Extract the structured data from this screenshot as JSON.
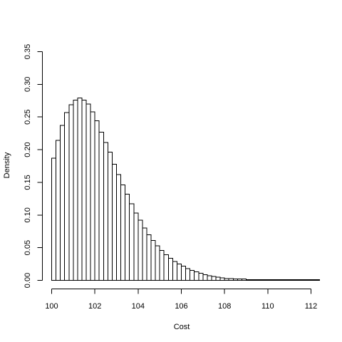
{
  "chart_data": {
    "type": "bar",
    "title": "",
    "xlabel": "Cost",
    "ylabel": "Density",
    "xlim": [
      100,
      112.5
    ],
    "ylim": [
      0,
      0.35
    ],
    "x_ticks": [
      100,
      102,
      104,
      106,
      108,
      110,
      112
    ],
    "y_ticks": [
      0.0,
      0.05,
      0.1,
      0.15,
      0.2,
      0.25,
      0.3,
      0.35
    ],
    "y_tick_labels": [
      "0.00",
      "0.05",
      "0.10",
      "0.15",
      "0.20",
      "0.25",
      "0.30",
      "0.35"
    ],
    "bin_width": 0.2,
    "bin_start": 100,
    "grid": false,
    "values": [
      0.187,
      0.214,
      0.237,
      0.257,
      0.269,
      0.276,
      0.279,
      0.276,
      0.27,
      0.258,
      0.244,
      0.227,
      0.211,
      0.196,
      0.178,
      0.162,
      0.146,
      0.132,
      0.117,
      0.103,
      0.092,
      0.08,
      0.07,
      0.061,
      0.053,
      0.046,
      0.039,
      0.034,
      0.029,
      0.025,
      0.022,
      0.018,
      0.015,
      0.013,
      0.011,
      0.009,
      0.007,
      0.006,
      0.005,
      0.004,
      0.003,
      0.003,
      0.002,
      0.002,
      0.002,
      0.001,
      0.001,
      0.001,
      0.001,
      0.001,
      0.001,
      0.001,
      0.001,
      0.001,
      0.001,
      0.001,
      0.001,
      0.001,
      0.001,
      0.001,
      0.001,
      0.001
    ]
  }
}
